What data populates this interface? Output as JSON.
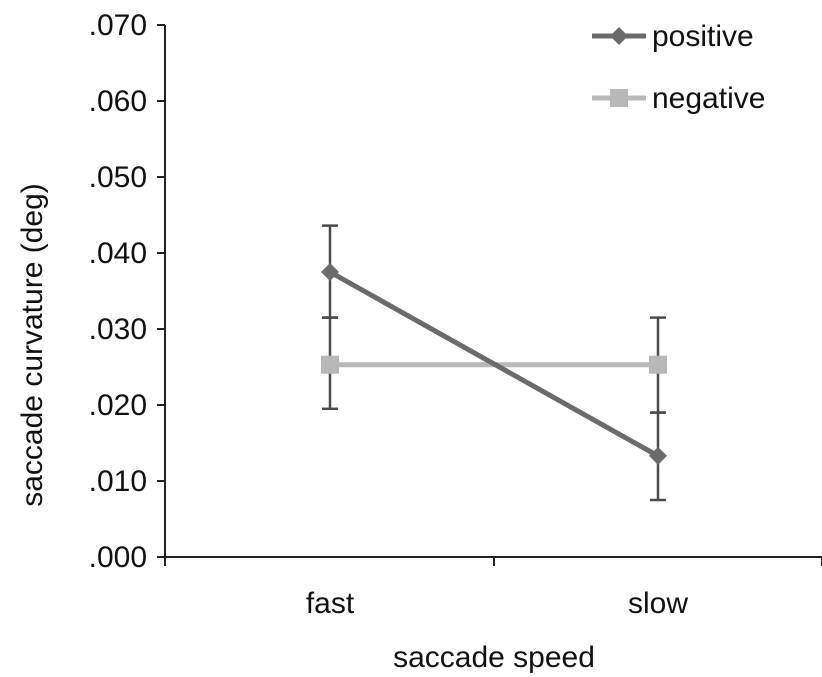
{
  "chart_data": {
    "type": "line",
    "title": "",
    "xlabel": "saccade speed",
    "ylabel": "saccade curvature (deg)",
    "categories": [
      "fast",
      "slow"
    ],
    "ylim": [
      0,
      0.07
    ],
    "yticks": [
      ".000",
      ".010",
      ".020",
      ".030",
      ".040",
      ".050",
      ".060",
      ".070"
    ],
    "grid": false,
    "legend_position": "top-right",
    "series": [
      {
        "name": "positive",
        "values": [
          0.0375,
          0.0133
        ],
        "error_upper": [
          0.0436,
          0.019
        ],
        "error_lower": [
          0.0315,
          0.0075
        ],
        "marker": "diamond",
        "color": "#6b6b6b"
      },
      {
        "name": "negative",
        "values": [
          0.0253,
          0.0253
        ],
        "error_upper": [
          0.0315,
          0.0315
        ],
        "error_lower": [
          0.0195,
          0.019
        ],
        "marker": "square",
        "color": "#b8b8b8"
      }
    ]
  }
}
